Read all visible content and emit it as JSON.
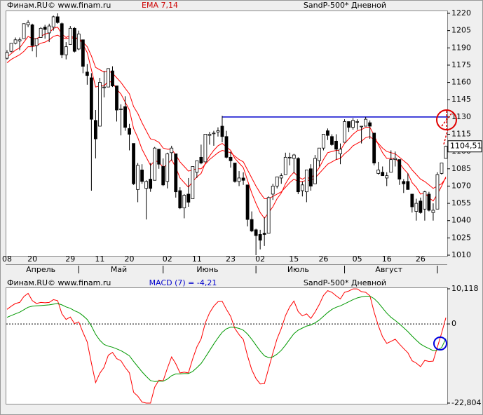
{
  "chart_data": [
    {
      "type": "candlestick",
      "source": "Финам.RU©  www.finam.ru",
      "title": "EMA 7,14",
      "subtitle": "SandP-500* Дневной",
      "categories": [
        "08",
        null,
        null,
        null,
        null,
        null,
        "20",
        null,
        null,
        null,
        null,
        null,
        null,
        null,
        null,
        "29",
        null,
        null,
        null,
        null,
        null,
        null,
        "11",
        null,
        null,
        null,
        null,
        null,
        null,
        "20",
        null,
        null,
        null,
        null,
        null,
        null,
        null,
        null,
        "02",
        null,
        null,
        null,
        null,
        null,
        null,
        "11",
        null,
        null,
        null,
        null,
        null,
        null,
        null,
        "23",
        null,
        null,
        null,
        null,
        null,
        null,
        "02",
        null,
        null,
        null,
        null,
        null,
        null,
        null,
        "15",
        null,
        null,
        null,
        null,
        null,
        null,
        "26",
        null,
        null,
        null,
        null,
        null,
        null,
        null,
        "05",
        null,
        null,
        null,
        null,
        null,
        null,
        "16",
        null,
        null,
        null,
        null,
        null,
        null,
        null,
        "26",
        null,
        null,
        null,
        null,
        null,
        null
      ],
      "x_groups": [
        "Апрель",
        "Май",
        "Июнь",
        "Июль",
        "Август"
      ],
      "open": [
        1181,
        1187,
        1194,
        1196,
        1198,
        1210,
        1210,
        1192,
        1199,
        1208,
        1203,
        1208,
        1217,
        1211,
        1184,
        1193,
        1207,
        1189,
        1197,
        1169,
        1164,
        1127,
        1122,
        1156,
        1156,
        1170,
        1157,
        1137,
        1139,
        1120,
        1107,
        1067,
        1084,
        1068,
        1076,
        1075,
        1102,
        1087,
        1074,
        1099,
        1098,
        1066,
        1051,
        1063,
        1059,
        1082,
        1095,
        1091,
        1114,
        1116,
        1117,
        1122,
        1113,
        1095,
        1090,
        1074,
        1077,
        1071,
        1041,
        1032,
        1028,
        1029,
        1029,
        1063,
        1070,
        1077,
        1080,
        1095,
        1094,
        1094,
        1066,
        1065,
        1085,
        1072,
        1092,
        1103,
        1118,
        1113,
        1109,
        1098,
        1108,
        1126,
        1121,
        1126,
        1122,
        1122,
        1125,
        1116,
        1081,
        1082,
        1077,
        1082,
        1093,
        1093,
        1074,
        1074,
        1063,
        1048,
        1057,
        1050,
        1063,
        1047,
        1050,
        1081,
        1094
      ],
      "high": [
        1188,
        1194,
        1199,
        1199,
        1211,
        1214,
        1211,
        1198,
        1208,
        1210,
        1211,
        1218,
        1220,
        1212,
        1195,
        1209,
        1208,
        1205,
        1197,
        1176,
        1168,
        1136,
        1164,
        1170,
        1172,
        1174,
        1157,
        1141,
        1148,
        1124,
        1107,
        1090,
        1089,
        1075,
        1090,
        1104,
        1102,
        1094,
        1099,
        1105,
        1098,
        1069,
        1063,
        1077,
        1087,
        1092,
        1106,
        1115,
        1117,
        1118,
        1121,
        1131,
        1118,
        1100,
        1090,
        1083,
        1082,
        1071,
        1048,
        1033,
        1032,
        1043,
        1061,
        1072,
        1078,
        1081,
        1099,
        1099,
        1098,
        1095,
        1074,
        1084,
        1089,
        1097,
        1103,
        1115,
        1120,
        1115,
        1115,
        1107,
        1128,
        1126,
        1129,
        1128,
        1122,
        1130,
        1127,
        1116,
        1091,
        1087,
        1082,
        1101,
        1100,
        1093,
        1076,
        1081,
        1063,
        1059,
        1060,
        1066,
        1065,
        1055,
        1082,
        1090,
        1105
      ],
      "low": [
        1180,
        1186,
        1193,
        1188,
        1198,
        1208,
        1187,
        1182,
        1199,
        1198,
        1195,
        1205,
        1211,
        1181,
        1180,
        1193,
        1186,
        1188,
        1168,
        1158,
        1066,
        1094,
        1122,
        1147,
        1156,
        1156,
        1126,
        1114,
        1118,
        1101,
        1071,
        1056,
        1072,
        1041,
        1065,
        1075,
        1085,
        1070,
        1068,
        1092,
        1060,
        1050,
        1042,
        1052,
        1059,
        1077,
        1089,
        1091,
        1106,
        1105,
        1113,
        1108,
        1094,
        1086,
        1073,
        1070,
        1071,
        1035,
        1030,
        1010,
        1015,
        1018,
        1029,
        1058,
        1068,
        1072,
        1080,
        1088,
        1081,
        1063,
        1061,
        1056,
        1066,
        1072,
        1087,
        1101,
        1110,
        1105,
        1093,
        1089,
        1108,
        1117,
        1119,
        1119,
        1107,
        1122,
        1111,
        1088,
        1080,
        1079,
        1070,
        1082,
        1087,
        1071,
        1064,
        1067,
        1047,
        1040,
        1046,
        1040,
        1048,
        1040,
        1050,
        1080,
        1094
      ],
      "close": [
        1186,
        1194,
        1197,
        1197,
        1211,
        1212,
        1192,
        1198,
        1207,
        1206,
        1209,
        1217,
        1212,
        1184,
        1191,
        1207,
        1187,
        1202,
        1174,
        1166,
        1128,
        1111,
        1160,
        1156,
        1172,
        1157,
        1136,
        1137,
        1121,
        1115,
        1072,
        1088,
        1074,
        1074,
        1068,
        1103,
        1089,
        1071,
        1098,
        1103,
        1065,
        1051,
        1062,
        1056,
        1087,
        1092,
        1090,
        1115,
        1115,
        1116,
        1118,
        1113,
        1095,
        1092,
        1074,
        1077,
        1075,
        1041,
        1031,
        1027,
        1023,
        1028,
        1060,
        1070,
        1078,
        1079,
        1095,
        1095,
        1097,
        1065,
        1071,
        1084,
        1070,
        1094,
        1103,
        1115,
        1114,
        1106,
        1102,
        1102,
        1126,
        1121,
        1127,
        1126,
        1122,
        1128,
        1122,
        1090,
        1084,
        1079,
        1079,
        1093,
        1094,
        1076,
        1072,
        1067,
        1052,
        1055,
        1047,
        1065,
        1049,
        1049,
        1080,
        1090,
        1104.51
      ],
      "up_color": "#ffffff",
      "down_color": "#000000",
      "series": [
        {
          "color": "#ff0000",
          "values": [
            1182,
            1185,
            1188,
            1190,
            1195,
            1200,
            1198,
            1198,
            1200,
            1202,
            1203,
            1207,
            1208,
            1202,
            1199,
            1201,
            1198,
            1199,
            1193,
            1186,
            1171,
            1156,
            1157,
            1157,
            1161,
            1160,
            1154,
            1150,
            1143,
            1136,
            1120,
            1112,
            1102,
            1095,
            1088,
            1092,
            1091,
            1086,
            1089,
            1093,
            1086,
            1077,
            1073,
            1069,
            1074,
            1078,
            1081,
            1090,
            1096,
            1101,
            1105,
            1107,
            1104,
            1101,
            1094,
            1090,
            1086,
            1075,
            1064,
            1055,
            1047,
            1042,
            1047,
            1052,
            1059,
            1064,
            1072,
            1078,
            1082,
            1078,
            1076,
            1078,
            1076,
            1081,
            1086,
            1093,
            1099,
            1100,
            1101,
            1101,
            1107,
            1111,
            1115,
            1118,
            1119,
            1121,
            1121,
            1114,
            1106,
            1099,
            1094,
            1094,
            1094,
            1090,
            1085,
            1081,
            1073,
            1069,
            1063,
            1064,
            1060,
            1057,
            1063,
            1070,
            1078
          ]
        },
        {
          "color": "#ff0000",
          "values": [
            1177,
            1180,
            1182,
            1184,
            1187,
            1191,
            1191,
            1192,
            1194,
            1195,
            1197,
            1200,
            1201,
            1199,
            1198,
            1199,
            1198,
            1198,
            1195,
            1191,
            1183,
            1173,
            1171,
            1169,
            1170,
            1168,
            1164,
            1160,
            1155,
            1150,
            1139,
            1133,
            1125,
            1118,
            1111,
            1110,
            1108,
            1103,
            1102,
            1102,
            1097,
            1091,
            1087,
            1083,
            1084,
            1085,
            1085,
            1089,
            1093,
            1096,
            1099,
            1101,
            1100,
            1099,
            1096,
            1093,
            1091,
            1084,
            1077,
            1070,
            1064,
            1059,
            1059,
            1061,
            1063,
            1065,
            1069,
            1073,
            1076,
            1074,
            1074,
            1075,
            1075,
            1077,
            1081,
            1085,
            1089,
            1091,
            1093,
            1094,
            1098,
            1101,
            1105,
            1107,
            1109,
            1112,
            1113,
            1110,
            1107,
            1103,
            1100,
            1099,
            1098,
            1095,
            1092,
            1089,
            1084,
            1080,
            1076,
            1074,
            1071,
            1068,
            1070,
            1072,
            1077
          ]
        }
      ],
      "ylim": [
        1010,
        1220
      ],
      "yticks": [
        1220,
        1205,
        1190,
        1175,
        1160,
        1145,
        1130,
        1115,
        1100,
        1085,
        1070,
        1055,
        1040,
        1025,
        1010
      ],
      "horizontal_line": {
        "value": 1130,
        "color": "#0000cc"
      },
      "last_label": "1104,51"
    },
    {
      "type": "line",
      "source": "Финам.RU©  www.finam.ru",
      "title": "MACD (7) = -4,21",
      "subtitle": "SandP-500* Дневной",
      "series": [
        {
          "color": "#ff0000",
          "values": [
            4.2,
            5.1,
            5.9,
            6.2,
            7.9,
            8.8,
            6.7,
            5.9,
            6.2,
            6.1,
            6.2,
            7,
            6.7,
            2.9,
            1.3,
            2,
            0.1,
            0.6,
            -2.4,
            -5.2,
            -11.3,
            -16.9,
            -14.2,
            -12.5,
            -9,
            -8.2,
            -10,
            -10.6,
            -12.5,
            -14.1,
            -19.7,
            -20.8,
            -22.5,
            -22.8,
            -22.8,
            -18.2,
            -16.2,
            -16.4,
            -12.8,
            -9.5,
            -11.5,
            -14.1,
            -13.9,
            -14.1,
            -10.1,
            -6.6,
            -4.3,
            0.3,
            3.2,
            5.1,
            6.4,
            6.5,
            4.2,
            2.2,
            -1.3,
            -3.1,
            -4.5,
            -9.2,
            -13.2,
            -15.7,
            -17.3,
            -17.2,
            -12.8,
            -8.4,
            -4.3,
            -1.3,
            2.4,
            4.9,
            6.6,
            3.6,
            2.3,
            2.9,
            1.6,
            3.4,
            5.6,
            8.2,
            9.6,
            9.1,
            8.1,
            7.2,
            9.1,
            9.5,
            10.1,
            10.1,
            9.3,
            9.1,
            8.1,
            3.4,
            -0.5,
            -3.7,
            -5.6,
            -5,
            -4.4,
            -5.8,
            -7.1,
            -8.3,
            -10.6,
            -11.3,
            -12.3,
            -10.5,
            -10.8,
            -10.7,
            -6.6,
            -2.6,
            1.8
          ]
        },
        {
          "color": "#009900",
          "values": [
            1.9,
            2.4,
            2.9,
            3.4,
            4.1,
            4.8,
            5.1,
            5.2,
            5.3,
            5.4,
            5.5,
            5.7,
            5.9,
            5.5,
            4.9,
            4.5,
            3.8,
            3.3,
            2.4,
            1.3,
            -0.6,
            -3,
            -4.7,
            -5.9,
            -6.4,
            -6.7,
            -7.2,
            -7.7,
            -8.4,
            -9.2,
            -10.8,
            -12.3,
            -13.8,
            -15.1,
            -16.3,
            -16.6,
            -16.5,
            -16.5,
            -15.9,
            -14.9,
            -14.4,
            -14.4,
            -14.3,
            -14.3,
            -13.7,
            -12.6,
            -11.4,
            -9.6,
            -7.7,
            -5.8,
            -4,
            -2.4,
            -1.4,
            -0.9,
            -1,
            -1.3,
            -1.8,
            -2.9,
            -4.4,
            -6.1,
            -7.8,
            -9.2,
            -9.7,
            -9.5,
            -8.7,
            -7.6,
            -6.1,
            -4.4,
            -2.8,
            -1.8,
            -1.2,
            -0.6,
            -0.3,
            0.3,
            1.1,
            2.2,
            3.3,
            4.2,
            4.8,
            5.2,
            5.8,
            6.4,
            7,
            7.5,
            7.8,
            8,
            8,
            7.3,
            6.1,
            4.6,
            3.1,
            1.9,
            1,
            0,
            -1.1,
            -2.2,
            -3.5,
            -4.7,
            -5.8,
            -6.5,
            -7.1,
            -7.7,
            -7.5,
            -6.8,
            -4.21
          ]
        }
      ],
      "ylim": [
        -22.804,
        10.118
      ],
      "yticks": [
        {
          "value": 10.118,
          "label": "10,118"
        },
        0,
        {
          "value": -22.804,
          "label": "-22,804"
        }
      ],
      "zero_line": true
    }
  ]
}
